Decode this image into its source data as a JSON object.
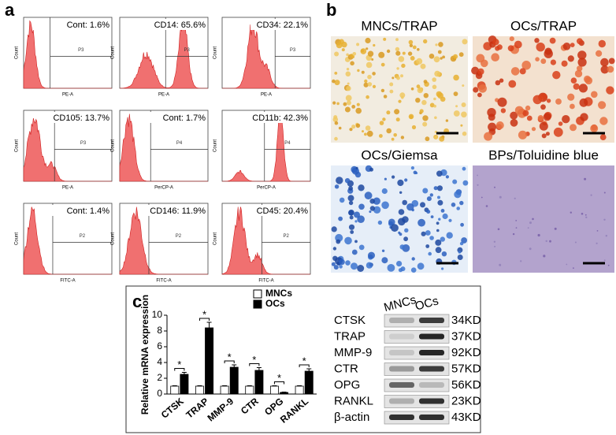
{
  "panel_labels": [
    "a",
    "b",
    "c"
  ],
  "flow": [
    {
      "label": "Cont: 1.6%",
      "gate": "P3",
      "x_axis": "PE-A",
      "y_axis": "Count"
    },
    {
      "label": "CD14: 65.6%",
      "gate": "P3",
      "x_axis": "PE-A",
      "y_axis": "Count"
    },
    {
      "label": "CD34: 22.1%",
      "gate": "P3",
      "x_axis": "PE-A",
      "y_axis": "Count"
    },
    {
      "label": "CD105: 13.7%",
      "gate": "P3",
      "x_axis": "PE-A",
      "y_axis": "Count"
    },
    {
      "label": "Cont: 1.7%",
      "gate": "P4",
      "x_axis": "PerCP-A",
      "y_axis": "Count"
    },
    {
      "label": "CD11b: 42.3%",
      "gate": "P4",
      "x_axis": "PerCP-A",
      "y_axis": "Count"
    },
    {
      "label": "Cont: 1.4%",
      "gate": "P2",
      "x_axis": "FITC-A",
      "y_axis": "Count"
    },
    {
      "label": "CD146: 11.9%",
      "gate": "P2",
      "x_axis": "FITC-A",
      "y_axis": "Count"
    },
    {
      "label": "CD45: 20.4%",
      "gate": "P2",
      "x_axis": "FITC-A",
      "y_axis": "Count"
    }
  ],
  "micrographs": [
    "MNCs/TRAP",
    "OCs/TRAP",
    "OCs/Giemsa",
    "BPs/Toluidine blue"
  ],
  "chart_data": {
    "type": "bar",
    "ylabel": "Relative mRNA expression",
    "categories": [
      "CTSK",
      "TRAP",
      "MMP-9",
      "CTR",
      "OPG",
      "RANKL"
    ],
    "series": [
      {
        "name": "MNCs",
        "color": "#ffffff",
        "values": [
          1,
          1,
          1,
          1,
          1,
          1
        ],
        "errors": [
          0.05,
          0.05,
          0.05,
          0.05,
          0.05,
          0.05
        ]
      },
      {
        "name": "OCs",
        "color": "#000000",
        "values": [
          2.5,
          8.4,
          3.4,
          3.0,
          0.2,
          2.9
        ],
        "errors": [
          0.25,
          0.7,
          0.3,
          0.35,
          0.05,
          0.3
        ]
      }
    ],
    "significance": [
      "*",
      "*",
      "*",
      "*",
      "*",
      "*"
    ],
    "ylim": [
      0,
      10
    ],
    "yticks": [
      0,
      2,
      4,
      6,
      8,
      10
    ]
  },
  "western": {
    "header": [
      "MNCs",
      "OCs"
    ],
    "rows": [
      {
        "protein": "CTSK",
        "size": "34KD"
      },
      {
        "protein": "TRAP",
        "size": "37KD"
      },
      {
        "protein": "MMP-9",
        "size": "92KD"
      },
      {
        "protein": "CTR",
        "size": "57KD"
      },
      {
        "protein": "OPG",
        "size": "56KD"
      },
      {
        "protein": "RANKL",
        "size": "23KD"
      },
      {
        "protein": "β-actin",
        "size": "43KD"
      }
    ]
  }
}
